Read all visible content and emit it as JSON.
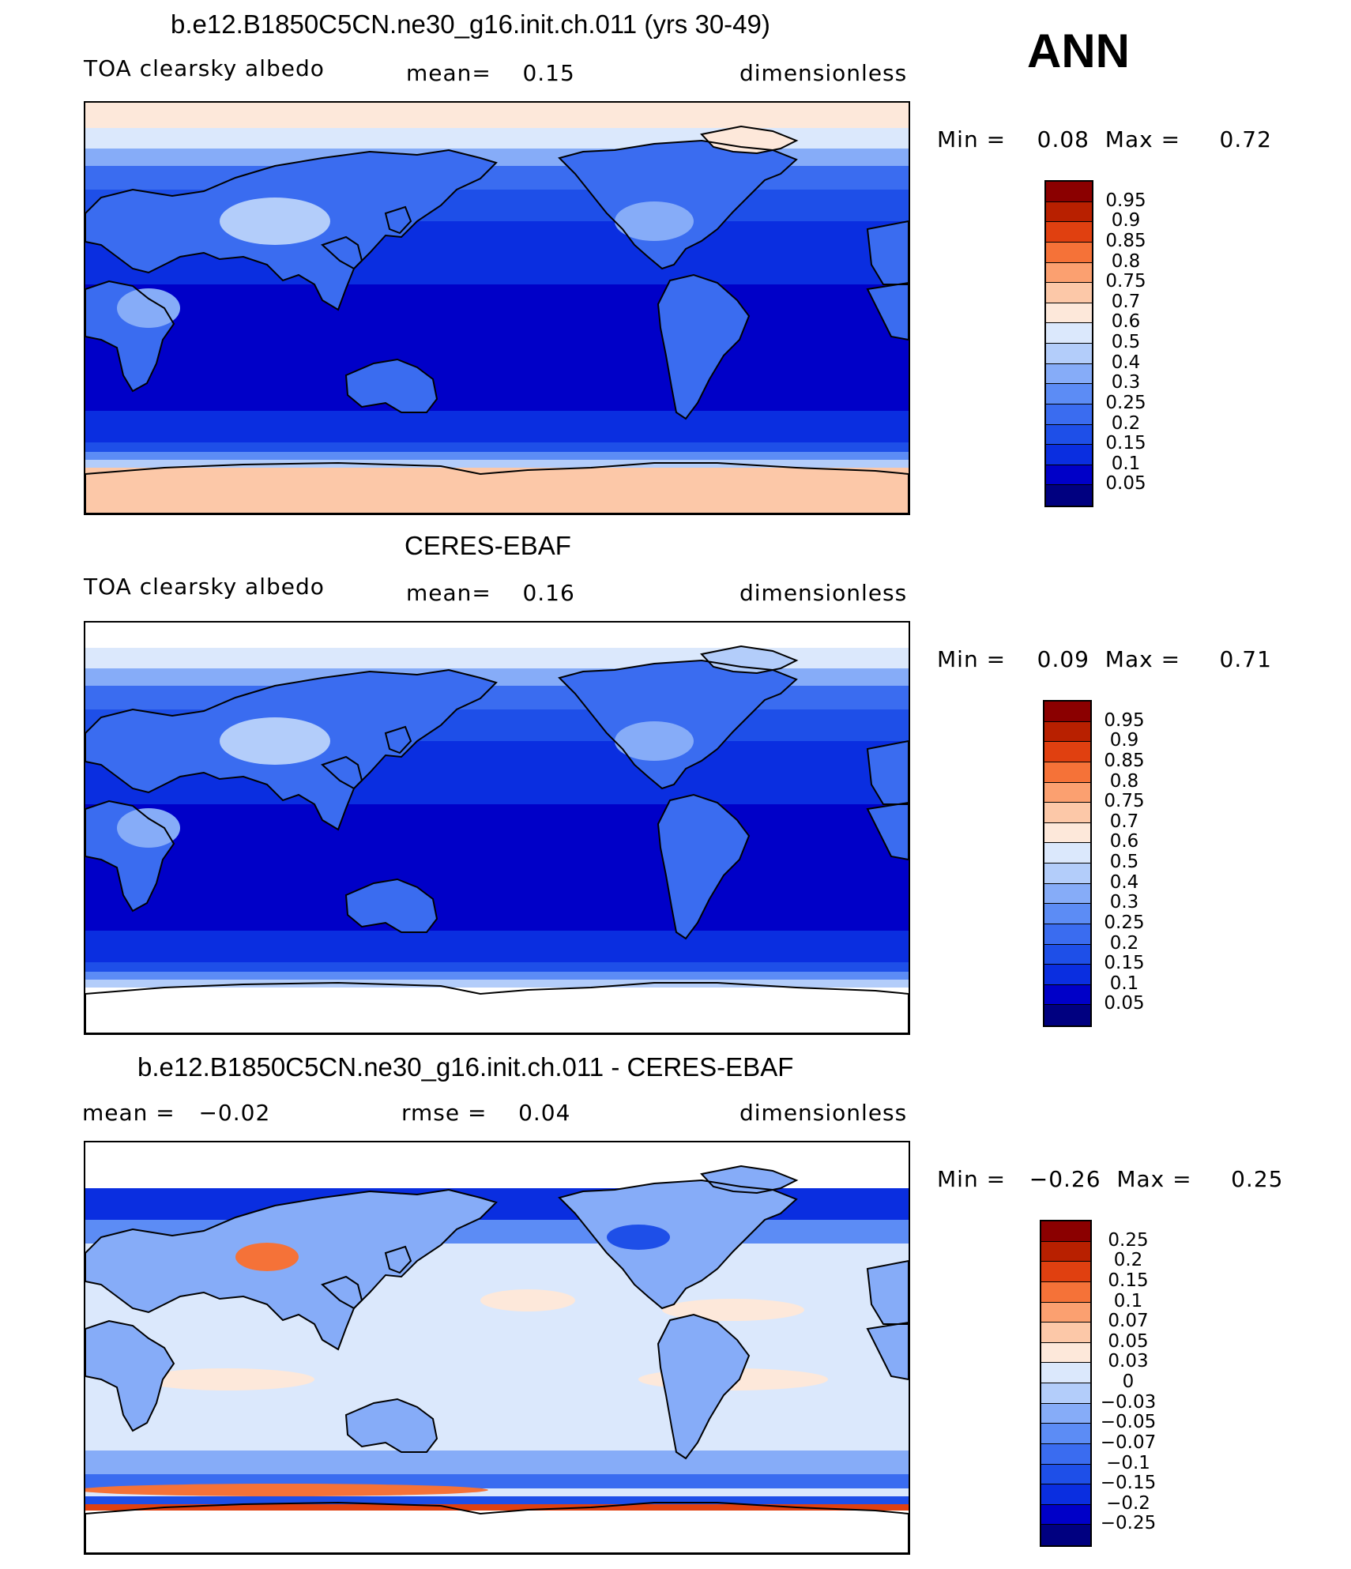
{
  "season": "ANN",
  "panels": [
    {
      "title": "b.e12.B1850C5CN.ne30_g16.init.ch.011 (yrs 30-49)",
      "left_text": "TOA clearsky albedo",
      "mid_text": "mean=    0.15",
      "right_text": "dimensionless",
      "min_max": "Min =    0.08  Max =     0.72",
      "colorbar_labels": [
        "0.95",
        "0.9",
        "0.85",
        "0.8",
        "0.75",
        "0.7",
        "0.6",
        "0.5",
        "0.4",
        "0.3",
        "0.25",
        "0.2",
        "0.15",
        "0.1",
        "0.05"
      ]
    },
    {
      "title": "CERES-EBAF",
      "left_text": "TOA clearsky albedo",
      "mid_text": "mean=    0.16",
      "right_text": "dimensionless",
      "min_max": "Min =    0.09  Max =     0.71",
      "colorbar_labels": [
        "0.95",
        "0.9",
        "0.85",
        "0.8",
        "0.75",
        "0.7",
        "0.6",
        "0.5",
        "0.4",
        "0.3",
        "0.25",
        "0.2",
        "0.15",
        "0.1",
        "0.05"
      ]
    },
    {
      "title": "b.e12.B1850C5CN.ne30_g16.init.ch.011 - CERES-EBAF",
      "left_text": "mean =   −0.02",
      "mid_text": "rmse =    0.04",
      "right_text": "dimensionless",
      "min_max": "Min =   −0.26  Max =     0.25",
      "colorbar_labels": [
        "0.25",
        "0.2",
        "0.15",
        "0.1",
        "0.07",
        "0.05",
        "0.03",
        "0",
        "−0.03",
        "−0.05",
        "−0.07",
        "−0.1",
        "−0.15",
        "−0.2",
        "−0.25"
      ]
    }
  ],
  "chart_data": [
    {
      "type": "heatmap",
      "title": "b.e12.B1850C5CN.ne30_g16.init.ch.011 (yrs 30-49)",
      "variable": "TOA clearsky albedo",
      "units": "dimensionless",
      "mean": 0.15,
      "min": 0.08,
      "max": 0.72,
      "contour_levels": [
        0.05,
        0.1,
        0.15,
        0.2,
        0.25,
        0.3,
        0.4,
        0.5,
        0.6,
        0.7,
        0.75,
        0.8,
        0.85,
        0.9,
        0.95
      ],
      "colors": [
        "#000080",
        "#0000c8",
        "#0a2ee0",
        "#1e4fe8",
        "#3a6cf0",
        "#5c8cf5",
        "#86acf8",
        "#b3cdfa",
        "#dbe8fc",
        "#fde8da",
        "#fcc8a8",
        "#fba070",
        "#f57238",
        "#e04010",
        "#b82000",
        "#8b0000"
      ]
    },
    {
      "type": "heatmap",
      "title": "CERES-EBAF",
      "variable": "TOA clearsky albedo",
      "units": "dimensionless",
      "mean": 0.16,
      "min": 0.09,
      "max": 0.71,
      "contour_levels": [
        0.05,
        0.1,
        0.15,
        0.2,
        0.25,
        0.3,
        0.4,
        0.5,
        0.6,
        0.7,
        0.75,
        0.8,
        0.85,
        0.9,
        0.95
      ],
      "colors": [
        "#000080",
        "#0000c8",
        "#0a2ee0",
        "#1e4fe8",
        "#3a6cf0",
        "#5c8cf5",
        "#86acf8",
        "#b3cdfa",
        "#dbe8fc",
        "#fde8da",
        "#fcc8a8",
        "#fba070",
        "#f57238",
        "#e04010",
        "#b82000",
        "#8b0000"
      ]
    },
    {
      "type": "heatmap",
      "title": "b.e12.B1850C5CN.ne30_g16.init.ch.011 - CERES-EBAF",
      "units": "dimensionless",
      "mean": -0.02,
      "rmse": 0.04,
      "min": -0.26,
      "max": 0.25,
      "contour_levels": [
        -0.25,
        -0.2,
        -0.15,
        -0.1,
        -0.07,
        -0.05,
        -0.03,
        0,
        0.03,
        0.05,
        0.07,
        0.1,
        0.15,
        0.2,
        0.25
      ],
      "colors": [
        "#000080",
        "#0000c8",
        "#0a2ee0",
        "#1e4fe8",
        "#3a6cf0",
        "#5c8cf5",
        "#86acf8",
        "#b3cdfa",
        "#dbe8fc",
        "#fde8da",
        "#fcc8a8",
        "#fba070",
        "#f57238",
        "#e04010",
        "#b82000",
        "#8b0000"
      ]
    }
  ]
}
